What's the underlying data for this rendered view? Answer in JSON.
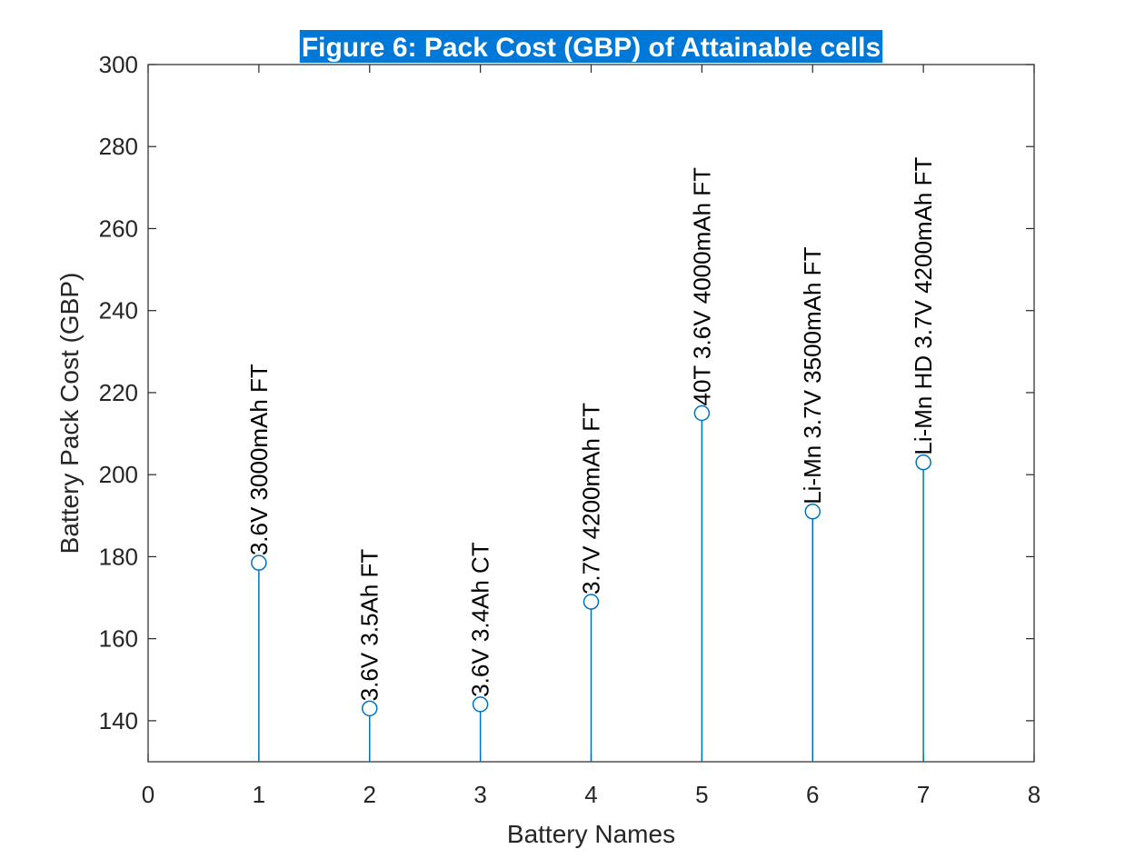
{
  "chart_data": {
    "type": "stem",
    "title": "Figure 6: Pack Cost (GBP) of Attainable cells",
    "xlabel": "Battery Names",
    "ylabel": "Battery Pack Cost (GBP)",
    "xlim": [
      0,
      8
    ],
    "ylim": [
      130,
      300
    ],
    "xticks": [
      0,
      1,
      2,
      3,
      4,
      5,
      6,
      7,
      8
    ],
    "yticks": [
      140,
      160,
      180,
      200,
      220,
      240,
      260,
      280,
      300
    ],
    "grid": false,
    "x": [
      1,
      2,
      3,
      4,
      5,
      6,
      7
    ],
    "values": [
      178.5,
      143,
      144,
      169,
      215,
      191,
      203
    ],
    "labels": [
      "3.6V 3000mAh FT",
      "3.6V 3.5Ah FT",
      "3.6V 3.4Ah CT",
      "3.7V 4200mAh FT",
      "40T 3.6V 4000mAh FT",
      "Li-Mn 3.7V 3500mAh FT",
      "Li-Mn HD 3.7V 4200mAh FT"
    ],
    "colors": {
      "stem": "#0072BD",
      "axis": "#262626",
      "title_bg": "#0078D7",
      "title_text": "#ffffff"
    }
  }
}
